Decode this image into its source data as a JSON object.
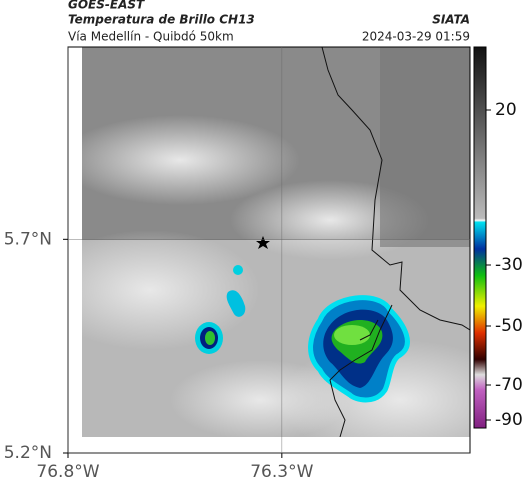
{
  "header": {
    "source": "GOES-EAST",
    "title": "Temperatura de Brillo CH13",
    "agency": "SIATA",
    "subtitle": "Vía Medellín - Quibdó 50km",
    "datetime": "2024-03-29 01:59"
  },
  "map": {
    "lonlim": [
      -76.8,
      -75.86
    ],
    "latlim": [
      5.2,
      6.15
    ],
    "lonticks": [
      {
        "value": -76.8,
        "label": "76.8°W"
      },
      {
        "value": -76.3,
        "label": "76.3°W"
      }
    ],
    "latticks": [
      {
        "value": 5.7,
        "label": "5.7°N"
      },
      {
        "value": 5.2,
        "label": "5.2°N"
      }
    ]
  },
  "colorbar": {
    "ticks": [
      20,
      -30,
      -50,
      -70,
      -90
    ]
  }
}
